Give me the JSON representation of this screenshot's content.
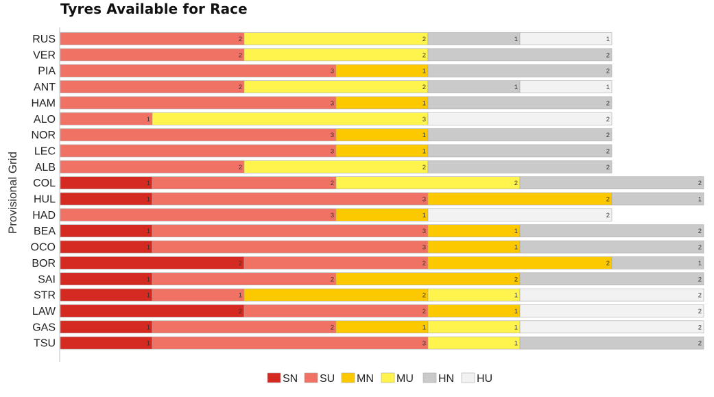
{
  "chart_data": {
    "type": "bar",
    "orientation": "horizontal",
    "stacked": true,
    "title": "Tyres Available for Race",
    "ylabel": "Provisional Grid",
    "xlabel": "",
    "categories": [
      "RUS",
      "VER",
      "PIA",
      "ANT",
      "HAM",
      "ALO",
      "NOR",
      "LEC",
      "ALB",
      "COL",
      "HUL",
      "HAD",
      "BEA",
      "OCO",
      "BOR",
      "SAI",
      "STR",
      "LAW",
      "GAS",
      "TSU"
    ],
    "series": [
      {
        "name": "SN",
        "color": "#d42a21",
        "values": [
          0,
          0,
          0,
          0,
          0,
          0,
          0,
          0,
          0,
          1,
          1,
          0,
          1,
          1,
          2,
          1,
          1,
          2,
          1,
          1
        ]
      },
      {
        "name": "SU",
        "color": "#f07265",
        "values": [
          2,
          2,
          3,
          2,
          3,
          1,
          3,
          3,
          2,
          2,
          3,
          3,
          3,
          3,
          2,
          2,
          1,
          2,
          2,
          3
        ]
      },
      {
        "name": "MN",
        "color": "#fcc800",
        "values": [
          0,
          0,
          1,
          0,
          1,
          0,
          1,
          1,
          0,
          0,
          2,
          1,
          1,
          1,
          2,
          2,
          2,
          1,
          1,
          0
        ]
      },
      {
        "name": "MU",
        "color": "#fff34d",
        "values": [
          2,
          2,
          0,
          2,
          0,
          3,
          0,
          0,
          2,
          2,
          0,
          0,
          0,
          0,
          0,
          0,
          1,
          0,
          1,
          1
        ]
      },
      {
        "name": "HN",
        "color": "#cacaca",
        "values": [
          1,
          2,
          2,
          1,
          2,
          0,
          2,
          2,
          2,
          2,
          1,
          0,
          2,
          2,
          1,
          2,
          0,
          0,
          0,
          2
        ]
      },
      {
        "name": "HU",
        "color": "#f2f2f2",
        "values": [
          1,
          0,
          0,
          1,
          0,
          2,
          0,
          0,
          0,
          0,
          0,
          2,
          0,
          0,
          0,
          0,
          2,
          2,
          2,
          0
        ]
      }
    ],
    "xlim": [
      0,
      7
    ],
    "legend_position": "bottom-center",
    "grid": false
  }
}
